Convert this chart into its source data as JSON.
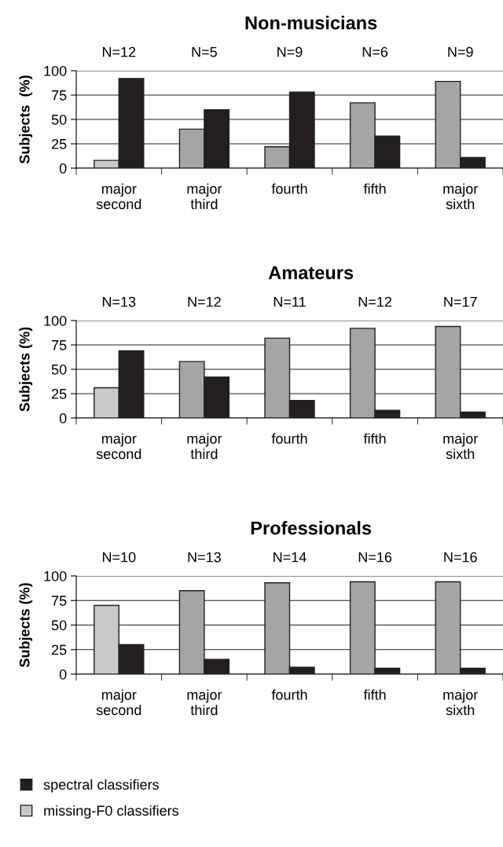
{
  "chart_data": [
    {
      "type": "bar",
      "title": "Non-musicians",
      "ylabel": "Subjects  (%)",
      "categories": [
        "major\nsecond",
        "major\nthird",
        "fourth",
        "fifth",
        "major\nsixth"
      ],
      "series": [
        {
          "color": "#a5a5a8",
          "colors": [
            "#c8c9cb",
            "#a5a5a8",
            "#a5a5a8",
            "#a5a5a8",
            "#a5a5a8"
          ],
          "values": [
            8,
            40,
            22,
            67,
            89
          ]
        },
        {
          "color": "#231f20",
          "values": [
            92,
            60,
            78,
            33,
            11
          ]
        }
      ],
      "ylim": [
        0,
        100
      ],
      "yticks": [
        0,
        25,
        50,
        75,
        100
      ],
      "grid": "y",
      "annotations": [
        "N=12",
        "N=5",
        "N=9",
        "N=6",
        "N=9"
      ]
    },
    {
      "type": "bar",
      "title": "Amateurs",
      "ylabel": "Subjects (%)",
      "categories": [
        "major\nsecond",
        "major\nthird",
        "fourth",
        "fifth",
        "major\nsixth"
      ],
      "series": [
        {
          "color": "#a5a5a8",
          "colors": [
            "#c8c9cb",
            "#a5a5a8",
            "#a5a5a8",
            "#a5a5a8",
            "#a5a5a8"
          ],
          "values": [
            31,
            58,
            82,
            92,
            94
          ]
        },
        {
          "color": "#231f20",
          "values": [
            69,
            42,
            18,
            8,
            6
          ]
        }
      ],
      "ylim": [
        0,
        100
      ],
      "yticks": [
        0,
        25,
        50,
        75,
        100
      ],
      "grid": "y",
      "annotations": [
        "N=13",
        "N=12",
        "N=11",
        "N=12",
        "N=17"
      ]
    },
    {
      "type": "bar",
      "title": "Professionals",
      "ylabel": "Subjects (%)",
      "categories": [
        "major\nsecond",
        "major\nthird",
        "fourth",
        "fifth",
        "major\nsixth"
      ],
      "series": [
        {
          "name": "missing-F0 classifiers",
          "color": "#c8c9cb",
          "colors": [
            "#c8c9cb",
            "#a5a5a8",
            "#a5a5a8",
            "#a5a5a8",
            "#a5a5a8"
          ],
          "values": [
            70,
            85,
            93,
            94,
            94
          ]
        },
        {
          "name": "spectral classifiers",
          "color": "#231f20",
          "values": [
            30,
            15,
            7,
            6,
            6
          ]
        }
      ],
      "ylim": [
        0,
        100
      ],
      "yticks": [
        0,
        25,
        50,
        75,
        100
      ],
      "grid": "y",
      "legend": "bottom",
      "annotations": [
        "N=10",
        "N=13",
        "N=14",
        "N=16",
        "N=16"
      ]
    }
  ]
}
